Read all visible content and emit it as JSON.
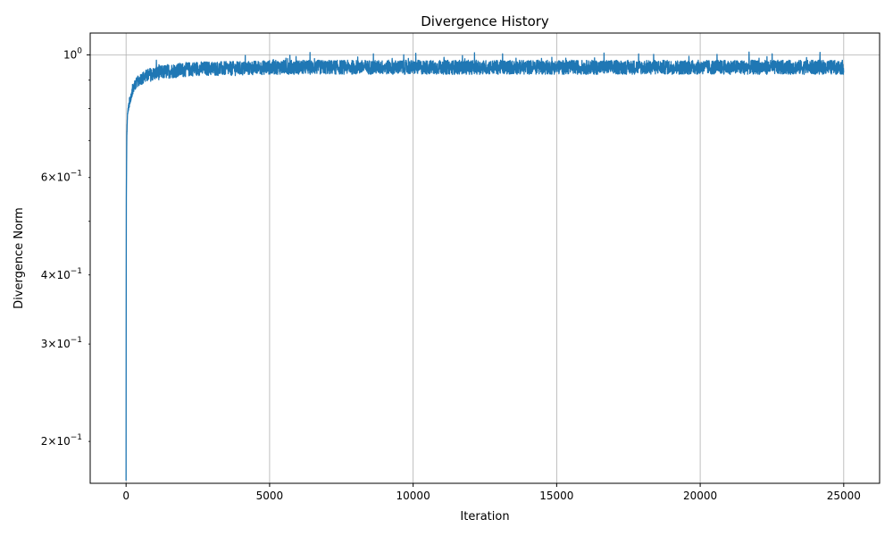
{
  "chart_data": {
    "type": "line",
    "title": "Divergence History",
    "xlabel": "Iteration",
    "ylabel": "Divergence Norm",
    "xlim": [
      -1250,
      26250
    ],
    "ylim": [
      0.168,
      1.095
    ],
    "yscale": "log",
    "grid": true,
    "line_color": "#1f77b4",
    "xticks": [
      0,
      5000,
      10000,
      15000,
      20000,
      25000
    ],
    "xtick_labels": [
      "0",
      "5000",
      "10000",
      "15000",
      "20000",
      "25000"
    ],
    "yticks_major": [
      {
        "value": 1.0,
        "base": "10",
        "exp": "0"
      }
    ],
    "yticks_minor": [
      {
        "value": 0.2,
        "mantissa": "2",
        "base": "10",
        "exp": "−1"
      },
      {
        "value": 0.3,
        "mantissa": "3",
        "base": "10",
        "exp": "−1"
      },
      {
        "value": 0.4,
        "mantissa": "4",
        "base": "10",
        "exp": "−1"
      },
      {
        "value": 0.5,
        "mantissa": "",
        "base": "",
        "exp": ""
      },
      {
        "value": 0.6,
        "mantissa": "6",
        "base": "10",
        "exp": "−1"
      },
      {
        "value": 0.7,
        "mantissa": "",
        "base": "",
        "exp": ""
      },
      {
        "value": 0.8,
        "mantissa": "",
        "base": "",
        "exp": ""
      },
      {
        "value": 0.9,
        "mantissa": "",
        "base": "",
        "exp": ""
      }
    ],
    "series": [
      {
        "x": [
          0,
          10,
          25,
          50,
          75,
          100,
          150,
          200,
          250,
          300,
          400,
          500,
          600,
          700,
          800,
          1000,
          1250,
          1500,
          2000,
          2500,
          3000,
          4000,
          5000,
          6000,
          7000,
          8000,
          9000,
          10000,
          11000,
          12000,
          13000,
          14000,
          15000,
          16000,
          17000,
          18000,
          19000,
          20000,
          21000,
          22000,
          23000,
          24000,
          25000
        ],
        "y": [
          0.17,
          0.55,
          0.71,
          0.78,
          0.8,
          0.81,
          0.83,
          0.85,
          0.87,
          0.88,
          0.895,
          0.905,
          0.91,
          0.915,
          0.92,
          0.925,
          0.93,
          0.935,
          0.94,
          0.945,
          0.945,
          0.945,
          0.95,
          0.95,
          0.95,
          0.95,
          0.95,
          0.95,
          0.95,
          0.95,
          0.95,
          0.95,
          0.95,
          0.95,
          0.95,
          0.95,
          0.95,
          0.95,
          0.95,
          0.95,
          0.95,
          0.95,
          0.95
        ],
        "noise_band": [
          0,
          0.004,
          0.006,
          0.008,
          0.01,
          0.01,
          0.012,
          0.014,
          0.016,
          0.018,
          0.02,
          0.022,
          0.024,
          0.025,
          0.026,
          0.026,
          0.027,
          0.028,
          0.028,
          0.028,
          0.028,
          0.028,
          0.028,
          0.028,
          0.028,
          0.028,
          0.028,
          0.028,
          0.028,
          0.028,
          0.028,
          0.028,
          0.028,
          0.028,
          0.028,
          0.028,
          0.028,
          0.028,
          0.028,
          0.028,
          0.028,
          0.028,
          0.028
        ]
      }
    ]
  }
}
